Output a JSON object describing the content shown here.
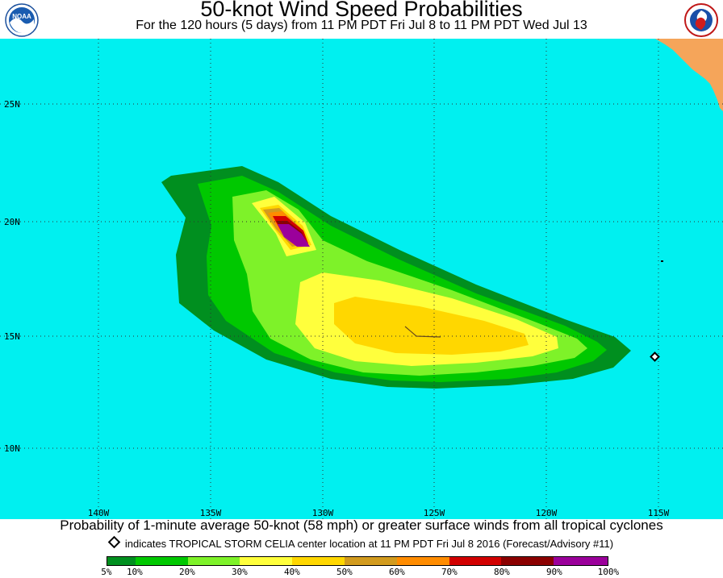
{
  "title": "50-knot Wind Speed Probabilities",
  "subtitle": "For the 120 hours (5 days) from 11 PM PDT Fri Jul 8 to 11 PM PDT Wed Jul 13",
  "logos": {
    "left": "NOAA",
    "right_icon": "national-weather-service-logo"
  },
  "map": {
    "lat_labels": [
      "25N",
      "20N",
      "15N",
      "10N"
    ],
    "lon_labels": [
      "140W",
      "135W",
      "130W",
      "125W",
      "120W",
      "115W"
    ],
    "colors": {
      "ocean": "#00f0f0",
      "land": "#f5a55a",
      "grid": "#303030",
      "band_5": "#008f1f",
      "band_10": "#00c800",
      "band_20": "#7ef229",
      "band_30": "#ffff3c",
      "band_40": "#ffd700",
      "band_50": "#d29b1e",
      "band_60": "#ff8c00",
      "band_70": "#d20000",
      "band_80": "#8b0000",
      "band_90": "#9b009b"
    },
    "storm_marker": {
      "name": "TROPICAL STORM CELIA",
      "lat": 14.1,
      "lon": 115.1
    }
  },
  "caption": "Probability of 1-minute average 50-knot (58 mph) or greater surface winds from all tropical cyclones",
  "storm_note": "indicates TROPICAL STORM CELIA center location at 11 PM PDT Fri Jul 8 2016 (Forecast/Advisory #11)",
  "legend": {
    "colors": [
      "#008f1f",
      "#00c800",
      "#7ef229",
      "#ffff3c",
      "#ffd700",
      "#d29b1e",
      "#ff8c00",
      "#d20000",
      "#8b0000",
      "#9b009b"
    ],
    "labels": [
      "5%",
      "10%",
      "20%",
      "30%",
      "40%",
      "50%",
      "60%",
      "70%",
      "80%",
      "90%",
      "100%"
    ]
  }
}
